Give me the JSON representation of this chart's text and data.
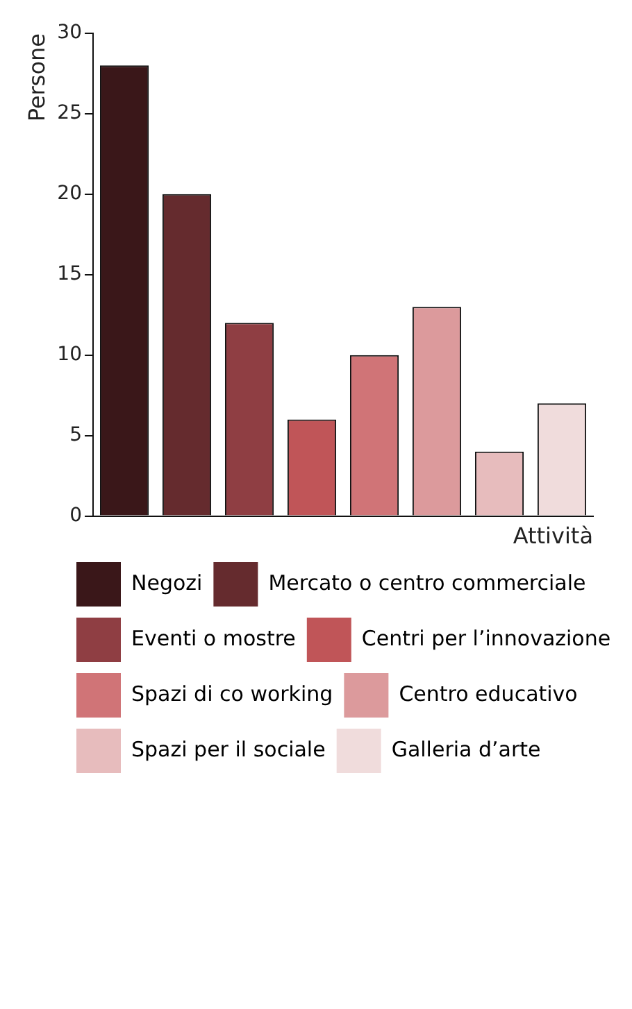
{
  "chart_data": {
    "type": "bar",
    "xlabel": "Attività",
    "ylabel": "Persone",
    "categories": [
      null,
      null,
      null,
      null,
      null,
      null,
      null,
      null
    ],
    "series": [
      {
        "name": "Negozi",
        "color": "#3a1719",
        "values": [
          28,
          null,
          null,
          null,
          null,
          null,
          null,
          null
        ]
      },
      {
        "name": "Mercato o centro commerciale",
        "color": "#652b2e",
        "values": [
          null,
          20,
          null,
          null,
          null,
          null,
          null,
          null
        ]
      },
      {
        "name": "Eventi o mostre",
        "color": "#8f3e43",
        "values": [
          null,
          null,
          12,
          null,
          null,
          null,
          null,
          null
        ]
      },
      {
        "name": "Centri per l’innovazione",
        "color": "#c05558",
        "values": [
          null,
          null,
          null,
          6,
          null,
          null,
          null,
          null
        ]
      },
      {
        "name": "Spazi di co working",
        "color": "#d07477",
        "values": [
          null,
          null,
          null,
          null,
          10,
          null,
          null,
          null
        ]
      },
      {
        "name": "Centro educativo",
        "color": "#dc9a9c",
        "values": [
          null,
          null,
          null,
          null,
          null,
          13,
          null,
          null
        ]
      },
      {
        "name": "Spazi per il sociale",
        "color": "#e7bcbd",
        "values": [
          null,
          null,
          null,
          null,
          null,
          null,
          4,
          null
        ]
      },
      {
        "name": "Galleria d’arte",
        "color": "#f0dcdc",
        "values": [
          null,
          null,
          null,
          null,
          null,
          null,
          null,
          7
        ]
      }
    ],
    "ylim": [
      0,
      30
    ],
    "yticks": [
      0,
      5,
      10,
      15,
      20,
      25,
      30
    ],
    "grid": false,
    "legend": "bottom"
  }
}
